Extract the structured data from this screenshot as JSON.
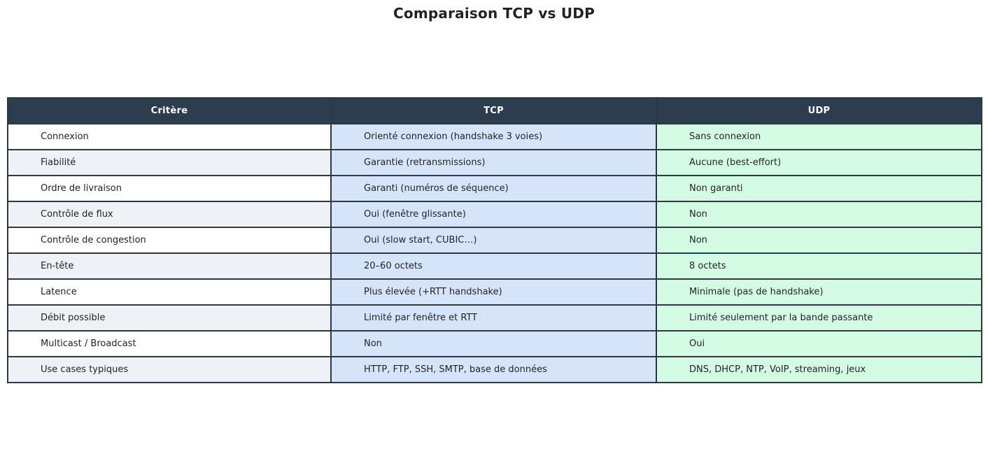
{
  "page": {
    "title": "Comparaison TCP vs UDP"
  },
  "colors": {
    "header_bg": "#2c3d4f",
    "header_text": "#ffffff",
    "tcp_cell_bg": "#d6e4fa",
    "udp_cell_bg": "#d4fbe4",
    "critere_row_bg": "#ffffff",
    "critere_row_alt_bg": "#eef1f6",
    "border": "#2e3742",
    "body_text": "#222426"
  },
  "chart_data": {
    "type": "table",
    "title": "Comparaison TCP vs UDP",
    "columns": [
      "Critère",
      "TCP",
      "UDP"
    ],
    "rows": [
      [
        "Connexion",
        "Orienté connexion (handshake 3 voies)",
        "Sans connexion"
      ],
      [
        "Fiabilité",
        "Garantie (retransmissions)",
        "Aucune (best-effort)"
      ],
      [
        "Ordre de livraison",
        "Garanti (numéros de séquence)",
        "Non garanti"
      ],
      [
        "Contrôle de flux",
        "Oui (fenêtre glissante)",
        "Non"
      ],
      [
        "Contrôle de congestion",
        "Oui (slow start, CUBIC…)",
        "Non"
      ],
      [
        "En-tête",
        "20–60 octets",
        "8 octets"
      ],
      [
        "Latence",
        "Plus élevée (+RTT handshake)",
        "Minimale (pas de handshake)"
      ],
      [
        "Débit possible",
        "Limité par fenêtre et RTT",
        "Limité seulement par la bande passante"
      ],
      [
        "Multicast / Broadcast",
        "Non",
        "Oui"
      ],
      [
        "Use cases typiques",
        "HTTP, FTP, SSH, SMTP, base de données",
        "DNS, DHCP, NTP, VoIP, streaming, jeux"
      ]
    ],
    "layout": {
      "header_position": "top",
      "column_alignment": [
        "left",
        "left",
        "left"
      ],
      "header_alignment": "center",
      "grid": true,
      "alternating_row_shading_first_column": true
    }
  }
}
